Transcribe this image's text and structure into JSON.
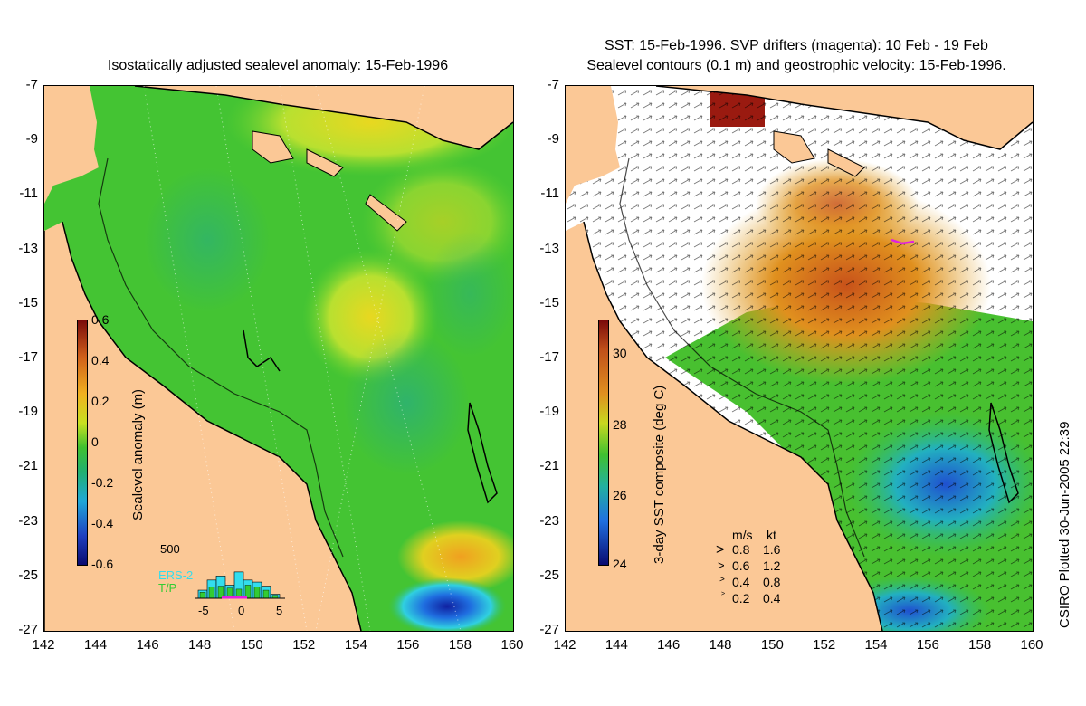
{
  "left_panel": {
    "title": "Isostatically adjusted sealevel anomaly: 15-Feb-1996",
    "y_ticks": [
      "-7",
      "-9",
      "-11",
      "-13",
      "-15",
      "-17",
      "-19",
      "-21",
      "-23",
      "-25",
      "-27"
    ],
    "x_ticks": [
      "142",
      "144",
      "146",
      "148",
      "150",
      "152",
      "154",
      "156",
      "158",
      "160"
    ],
    "colorbar": {
      "label": "Sealevel anomaly (m)",
      "ticks": [
        "0.6",
        "0.4",
        "0.2",
        "0",
        "-0.2",
        "-0.4",
        "-0.6"
      ]
    },
    "histogram": {
      "y_max_label": "500",
      "x_ticks": [
        "-5",
        "0",
        "5"
      ],
      "legend": [
        "ERS-2",
        "T/P"
      ],
      "legend_colors": [
        "#33ddee",
        "#33cc33"
      ],
      "ers2_values": [
        80,
        180,
        220,
        130,
        260,
        180,
        160,
        120,
        40
      ],
      "tp_values": [
        60,
        110,
        120,
        100,
        90,
        130,
        110,
        80,
        30
      ]
    }
  },
  "right_panel": {
    "title_line1": "SST: 15-Feb-1996. SVP drifters (magenta): 10 Feb - 19 Feb",
    "title_line2": "Sealevel contours (0.1 m) and geostrophic velocity: 15-Feb-1996.",
    "y_ticks": [
      "-7",
      "-9",
      "-11",
      "-13",
      "-15",
      "-17",
      "-19",
      "-21",
      "-23",
      "-25",
      "-27"
    ],
    "x_ticks": [
      "142",
      "144",
      "146",
      "148",
      "150",
      "152",
      "154",
      "156",
      "158",
      "160"
    ],
    "colorbar": {
      "label": "3-day SST composite (deg C)",
      "ticks": [
        "30",
        "28",
        "26",
        "24"
      ]
    },
    "velocity_key": {
      "header_ms": "m/s",
      "header_kt": "kt",
      "rows": [
        {
          "ms": "0.8",
          "kt": "1.6"
        },
        {
          "ms": "0.6",
          "kt": "1.2"
        },
        {
          "ms": "0.4",
          "kt": "0.8"
        },
        {
          "ms": "0.2",
          "kt": "0.4"
        }
      ]
    }
  },
  "credit": "CSIRO Plotted 30-Jun-2005 22:39",
  "colors": {
    "land": "#fbc896",
    "ocean_mid": "#33c033",
    "warm_sst": "#e08a1e",
    "hot_sst": "#9a1a10"
  }
}
